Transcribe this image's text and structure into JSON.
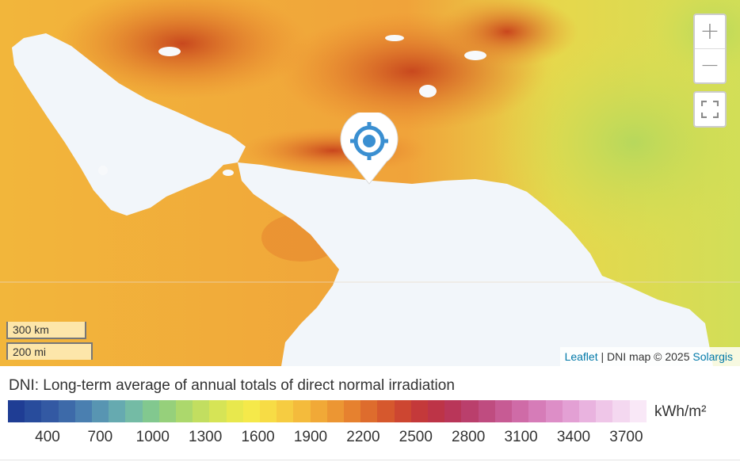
{
  "map": {
    "zoom_in_label": "+",
    "zoom_out_label": "−",
    "fullscreen_icon": "fullscreen-icon",
    "marker_icon": "crosshair-location-icon",
    "scale": {
      "km": "300 km",
      "mi": "200 mi"
    },
    "attribution": {
      "leaflet": "Leaflet",
      "separator": " | ",
      "text": "DNI map © 2025 ",
      "solargis": "Solargis"
    }
  },
  "legend": {
    "title": "DNI: Long-term average of annual totals of direct normal irradiation",
    "unit": "kWh/m²",
    "ticks": [
      "400",
      "700",
      "1000",
      "1300",
      "1600",
      "1900",
      "2200",
      "2500",
      "2800",
      "3100",
      "3400",
      "3700"
    ],
    "colors": [
      "#1f3d94",
      "#284c9c",
      "#3359a3",
      "#3d6aa9",
      "#4a7fb0",
      "#5895b2",
      "#66aab0",
      "#74bba5",
      "#82c88f",
      "#96d07b",
      "#acd86c",
      "#c2de60",
      "#d6e456",
      "#e8e84d",
      "#f5e94a",
      "#f7dc45",
      "#f6cc41",
      "#f4bb3c",
      "#f1a937",
      "#ec9633",
      "#e6812f",
      "#de6c2d",
      "#d6582d",
      "#cd4631",
      "#c4393a",
      "#bd3447",
      "#b93659",
      "#ba3f6c",
      "#bf4c80",
      "#c75b94",
      "#cf6ba7",
      "#d67cb8",
      "#dd8ec7",
      "#e3a0d4",
      "#e9b3df",
      "#efc6e8",
      "#f4d8f0",
      "#f9e8f7"
    ]
  }
}
